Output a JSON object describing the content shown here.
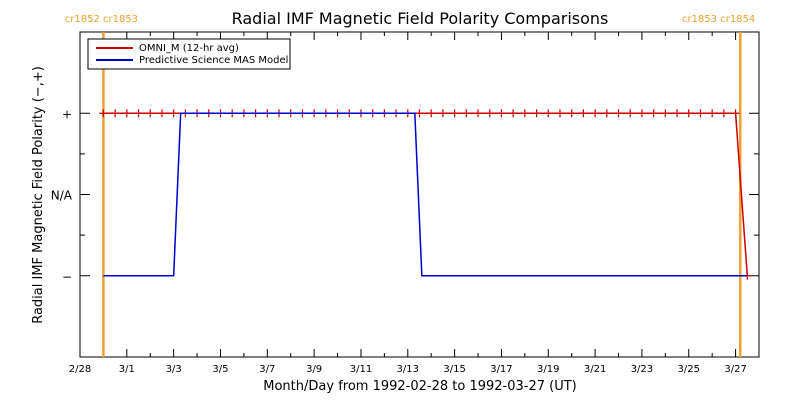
{
  "chart_data": {
    "type": "line",
    "title": "Radial IMF Magnetic Field Polarity Comparisons",
    "xlabel": "Month/Day from 1992-02-28 to 1992-03-27 (UT)",
    "ylabel": "Radial IMF Magnetic Field Polarity (−,+)",
    "x_range_days": [
      0,
      29
    ],
    "x_ticks": [
      {
        "day": 0,
        "label": "2/28"
      },
      {
        "day": 2,
        "label": "3/1"
      },
      {
        "day": 4,
        "label": "3/3"
      },
      {
        "day": 6,
        "label": "3/5"
      },
      {
        "day": 8,
        "label": "3/7"
      },
      {
        "day": 10,
        "label": "3/9"
      },
      {
        "day": 12,
        "label": "3/11"
      },
      {
        "day": 14,
        "label": "3/13"
      },
      {
        "day": 16,
        "label": "3/15"
      },
      {
        "day": 18,
        "label": "3/17"
      },
      {
        "day": 20,
        "label": "3/19"
      },
      {
        "day": 22,
        "label": "3/21"
      },
      {
        "day": 24,
        "label": "3/23"
      },
      {
        "day": 26,
        "label": "3/25"
      },
      {
        "day": 28,
        "label": "3/27"
      }
    ],
    "y_range": [
      -2,
      2
    ],
    "y_ticks": [
      {
        "value": 1,
        "label": "+"
      },
      {
        "value": 0,
        "label": "N/A"
      },
      {
        "value": -1,
        "label": "−"
      }
    ],
    "carrington": [
      {
        "day": 1.0,
        "label": "cr1852 cr1853"
      },
      {
        "day": 28.2,
        "label": "cr1853 cr1854"
      }
    ],
    "legend": {
      "position": "top-left",
      "entries": [
        {
          "label": "OMNI_M (12-hr avg)",
          "color": "#cc0000"
        },
        {
          "label": "Predictive Science MAS Model",
          "color": "#0000cc"
        }
      ]
    },
    "series": [
      {
        "name": "OMNI_M (12-hr avg)",
        "color": "#cc0000",
        "marker": "plus",
        "points": [
          [
            1.0,
            1
          ],
          [
            1.5,
            1
          ],
          [
            2.0,
            1
          ],
          [
            2.5,
            1
          ],
          [
            3.0,
            1
          ],
          [
            3.5,
            1
          ],
          [
            4.0,
            1
          ],
          [
            4.5,
            1
          ],
          [
            5.0,
            1
          ],
          [
            5.5,
            1
          ],
          [
            6.0,
            1
          ],
          [
            6.5,
            1
          ],
          [
            7.0,
            1
          ],
          [
            7.5,
            1
          ],
          [
            8.0,
            1
          ],
          [
            8.5,
            1
          ],
          [
            9.0,
            1
          ],
          [
            9.5,
            1
          ],
          [
            10.0,
            1
          ],
          [
            10.5,
            1
          ],
          [
            11.0,
            1
          ],
          [
            11.5,
            1
          ],
          [
            12.0,
            1
          ],
          [
            12.5,
            1
          ],
          [
            13.0,
            1
          ],
          [
            13.5,
            1
          ],
          [
            14.0,
            1
          ],
          [
            14.5,
            1
          ],
          [
            15.0,
            1
          ],
          [
            15.5,
            1
          ],
          [
            16.0,
            1
          ],
          [
            16.5,
            1
          ],
          [
            17.0,
            1
          ],
          [
            17.5,
            1
          ],
          [
            18.0,
            1
          ],
          [
            18.5,
            1
          ],
          [
            19.0,
            1
          ],
          [
            19.5,
            1
          ],
          [
            20.0,
            1
          ],
          [
            20.5,
            1
          ],
          [
            21.0,
            1
          ],
          [
            21.5,
            1
          ],
          [
            22.0,
            1
          ],
          [
            22.5,
            1
          ],
          [
            23.0,
            1
          ],
          [
            23.5,
            1
          ],
          [
            24.0,
            1
          ],
          [
            24.5,
            1
          ],
          [
            25.0,
            1
          ],
          [
            25.5,
            1
          ],
          [
            26.0,
            1
          ],
          [
            26.5,
            1
          ],
          [
            27.0,
            1
          ],
          [
            27.5,
            1
          ],
          [
            28.0,
            1
          ],
          [
            28.5,
            -1
          ]
        ]
      },
      {
        "name": "Predictive Science MAS Model",
        "color": "#0000cc",
        "marker": "none",
        "points": [
          [
            1.0,
            -1
          ],
          [
            4.0,
            -1
          ],
          [
            4.3,
            1
          ],
          [
            14.3,
            1
          ],
          [
            14.6,
            -1
          ],
          [
            28.5,
            -1
          ]
        ]
      }
    ]
  },
  "colors": {
    "carrington_line": "#f0a030",
    "axes": "#000000"
  }
}
